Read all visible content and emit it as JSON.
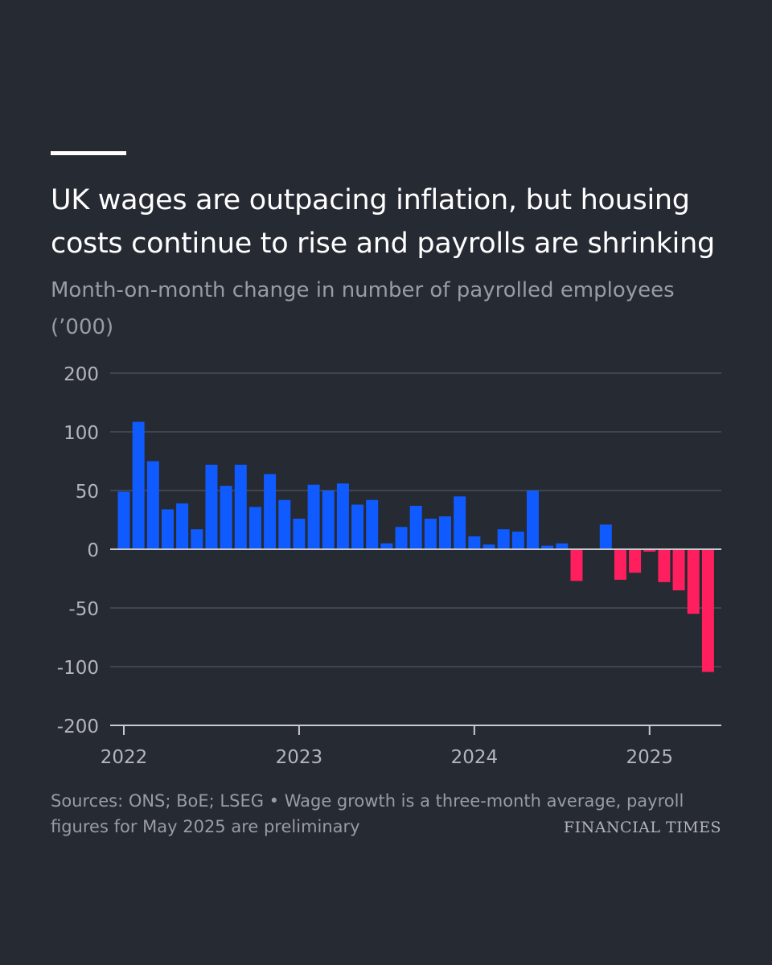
{
  "header": {
    "title": "UK wages are outpacing inflation, but housing costs continue to rise and payrolls are shrinking",
    "subtitle": "Month-on-month change in number of payrolled employees (’000)"
  },
  "chart_data": {
    "type": "bar",
    "title": "UK wages are outpacing inflation, but housing costs continue to rise and payrolls are shrinking",
    "subtitle": "Month-on-month change in number of payrolled employees (’000)",
    "xlabel": "",
    "ylabel": "",
    "y_ticks": [
      200,
      100,
      50,
      0,
      -50,
      -100,
      -200
    ],
    "y_tick_labels": [
      "200",
      "100",
      "50",
      "0",
      "-50",
      "-100",
      "-200"
    ],
    "ylim": [
      -200,
      200
    ],
    "x_tick_labels": [
      "2022",
      "2023",
      "2024",
      "2025"
    ],
    "grid": true,
    "legend": "none",
    "colors": {
      "positive": "#0f5bff",
      "negative": "#ff1f5f",
      "background": "#262a33",
      "grid": "#4a4e57",
      "axis": "#c9cacd"
    },
    "categories": [
      "Jan 2022",
      "Feb 2022",
      "Mar 2022",
      "Apr 2022",
      "May 2022",
      "Jun 2022",
      "Jul 2022",
      "Aug 2022",
      "Sep 2022",
      "Oct 2022",
      "Nov 2022",
      "Dec 2022",
      "Jan 2023",
      "Feb 2023",
      "Mar 2023",
      "Apr 2023",
      "May 2023",
      "Jun 2023",
      "Jul 2023",
      "Aug 2023",
      "Sep 2023",
      "Oct 2023",
      "Nov 2023",
      "Dec 2023",
      "Jan 2024",
      "Feb 2024",
      "Mar 2024",
      "Apr 2024",
      "May 2024",
      "Jun 2024",
      "Jul 2024",
      "Aug 2024",
      "Sep 2024",
      "Oct 2024",
      "Nov 2024",
      "Dec 2024",
      "Jan 2025",
      "Feb 2025",
      "Mar 2025",
      "Apr 2025",
      "May 2025"
    ],
    "values": [
      49,
      117,
      75,
      34,
      39,
      17,
      72,
      54,
      72,
      36,
      64,
      42,
      26,
      55,
      50,
      56,
      38,
      42,
      5,
      19,
      37,
      26,
      28,
      45,
      11,
      4,
      17,
      15,
      50,
      3,
      5,
      -27,
      0,
      21,
      -26,
      -20,
      -2,
      -28,
      -35,
      -55,
      -109
    ]
  },
  "footer": {
    "source": "Sources: ONS; BoE; LSEG • Wage growth is a three-month average, payroll figures for May 2025 are preliminary",
    "brand": "FINANCIAL TIMES"
  }
}
